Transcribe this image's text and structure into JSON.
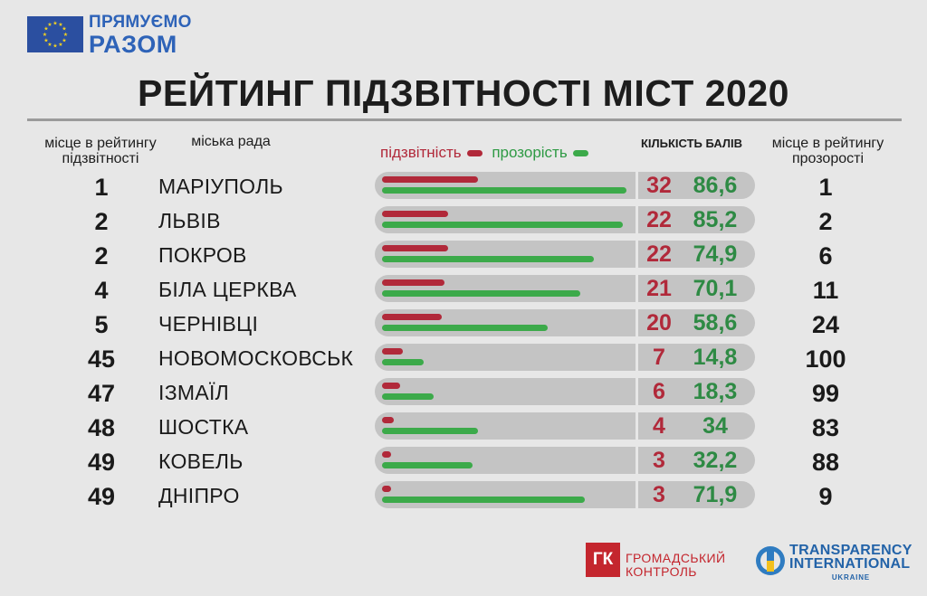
{
  "brand": {
    "line1": "ПРЯМУЄМО",
    "line2": "РАЗОМ"
  },
  "colors": {
    "accountability": "#b1293a",
    "transparency": "#3caa4a",
    "track": "#c4c4c4",
    "brand_blue": "#2e63b8"
  },
  "header": {
    "rank_label": "місце в рейтингу підзвітності",
    "city_label": "міська рада",
    "legend_accountability": "підзвітність",
    "legend_transparency": "прозорість",
    "score_label": "КІЛЬКІСТЬ БАЛІВ",
    "transparency_rank_label": "місце в рейтингу прозорості"
  },
  "chart_data": {
    "type": "bar",
    "title": "РЕЙТИНГ ПІДЗВІТНОСТІ МІСТ 2020",
    "orientation": "horizontal",
    "categories": [
      "МАРІУПОЛЬ",
      "ЛЬВІВ",
      "ПОКРОВ",
      "БІЛА ЦЕРКВА",
      "ЧЕРНІВЦІ",
      "НОВОМОСКОВСЬК",
      "ІЗМАЇЛ",
      "ШОСТКА",
      "КОВЕЛЬ",
      "ДНІПРО"
    ],
    "accountability_rank": [
      "1",
      "2",
      "2",
      "4",
      "5",
      "45",
      "47",
      "48",
      "49",
      "49"
    ],
    "transparency_rank": [
      "1",
      "2",
      "6",
      "11",
      "24",
      "100",
      "99",
      "83",
      "88",
      "9"
    ],
    "series": [
      {
        "name": "підзвітність",
        "values": [
          32,
          22,
          22,
          21,
          20,
          7,
          6,
          4,
          3,
          3
        ],
        "labels": [
          "32",
          "22",
          "22",
          "21",
          "20",
          "7",
          "6",
          "4",
          "3",
          "3"
        ]
      },
      {
        "name": "прозорість",
        "values": [
          86.6,
          85.2,
          74.9,
          70.1,
          58.6,
          14.8,
          18.3,
          34,
          32.2,
          71.9
        ],
        "labels": [
          "86,6",
          "85,2",
          "74,9",
          "70,1",
          "58,6",
          "14,8",
          "18,3",
          "34",
          "32,2",
          "71,9"
        ]
      }
    ]
  },
  "footer": {
    "gk_mark": "ГК",
    "gk_line1": "ГРОМАДСЬКИЙ",
    "gk_line2": "КОНТРОЛЬ",
    "ti_line1": "TRANSPARENCY",
    "ti_line2": "INTERNATIONAL",
    "ti_line3": "UKRAINE"
  }
}
